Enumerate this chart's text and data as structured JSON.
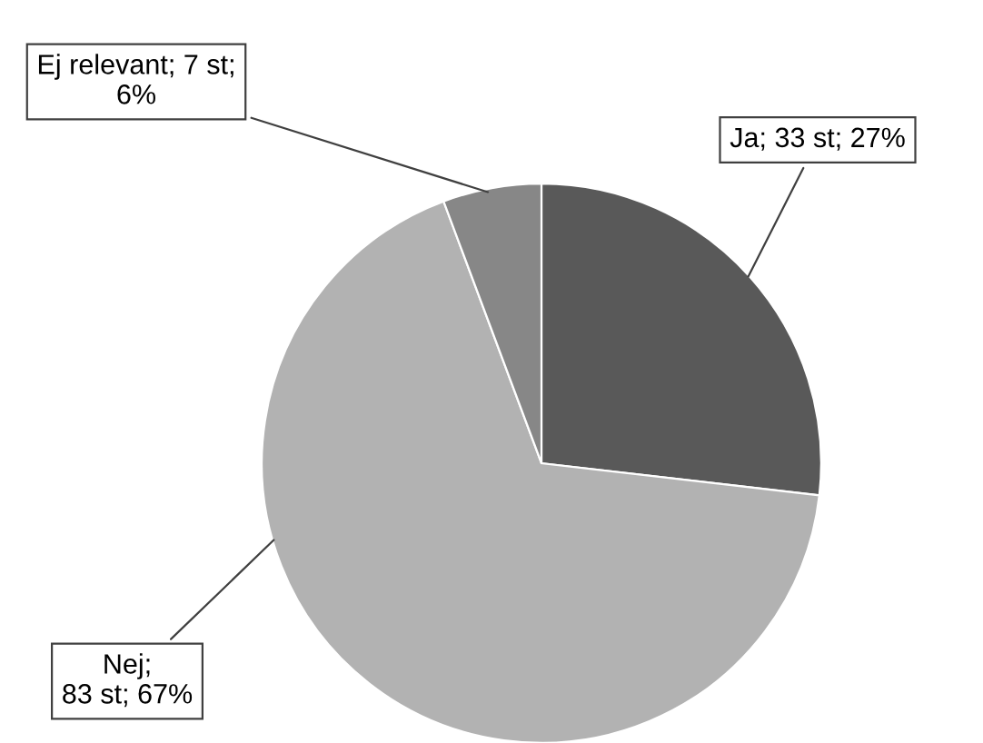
{
  "chart_data": {
    "type": "pie",
    "categories": [
      "Ja",
      "Nej",
      "Ej relevant"
    ],
    "values": [
      33,
      83,
      7
    ],
    "value_labels": [
      "; 33 st; 27%",
      ";\n83 st; 67%",
      "; 7 st;\n6%"
    ],
    "colors": [
      "#595959",
      "#b2b2b2",
      "#878787"
    ],
    "legend": false
  }
}
